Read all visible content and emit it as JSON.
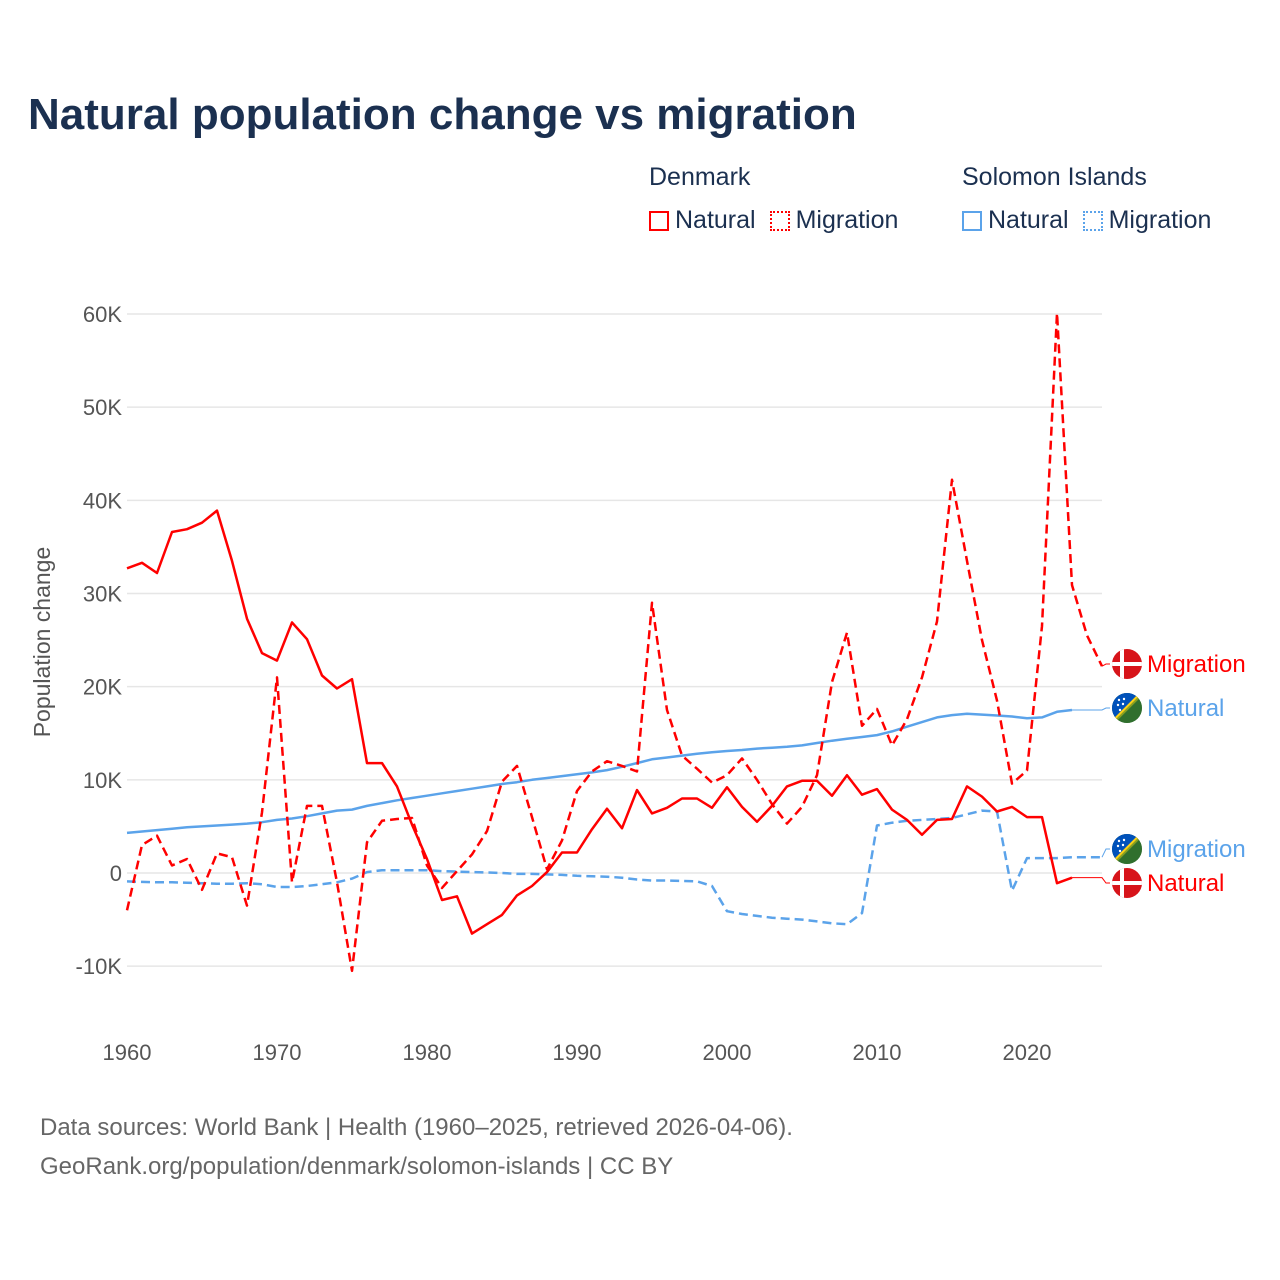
{
  "title": "Natural population change vs migration",
  "legend": {
    "groups": [
      {
        "name": "Denmark",
        "color": "#ff0000",
        "items": [
          "Natural",
          "Migration"
        ]
      },
      {
        "name": "Solomon Islands",
        "color": "#5ba3ea",
        "items": [
          "Natural",
          "Migration"
        ]
      }
    ]
  },
  "footer": {
    "line1": "Data sources: World Bank | Health (1960–2025, retrieved 2026-04-06).",
    "line2": "GeoRank.org/population/denmark/solomon-islands | CC BY"
  },
  "chart_data": {
    "type": "line",
    "title": "Natural population change vs migration",
    "xlabel": "",
    "ylabel": "Population change",
    "xlim": [
      1960,
      2025
    ],
    "ylim": [
      -10000,
      60000
    ],
    "x_ticks": [
      1960,
      1970,
      1980,
      1990,
      2000,
      2010,
      2020
    ],
    "y_ticks": [
      {
        "v": -10000,
        "l": "-10K"
      },
      {
        "v": 0,
        "l": "0"
      },
      {
        "v": 10000,
        "l": "10K"
      },
      {
        "v": 20000,
        "l": "20K"
      },
      {
        "v": 30000,
        "l": "30K"
      },
      {
        "v": 40000,
        "l": "40K"
      },
      {
        "v": 50000,
        "l": "50K"
      },
      {
        "v": 60000,
        "l": "60K"
      }
    ],
    "grid": true,
    "legend_position": "top-right",
    "series": [
      {
        "name": "Denmark Natural",
        "label": "Natural",
        "flag": "denmark",
        "color": "#ff0000",
        "dashed": false,
        "start": 1960,
        "values": [
          32700,
          33300,
          32200,
          36600,
          36900,
          37600,
          38900,
          33500,
          27300,
          23600,
          22800,
          26900,
          25100,
          21200,
          19800,
          20800,
          11800,
          11800,
          9300,
          5200,
          1500,
          -2900,
          -2500,
          -6500,
          -5500,
          -4500,
          -2400,
          -1400,
          100,
          2200,
          2200,
          4700,
          6900,
          4800,
          8900,
          6400,
          7000,
          8000,
          8000,
          7000,
          9200,
          7100,
          5500,
          7200,
          9300,
          9900,
          9900,
          8300,
          10500,
          8400,
          9000,
          6800,
          5700,
          4100,
          5700,
          5800,
          9300,
          8200,
          6600,
          7100,
          6000,
          6000,
          -1100,
          -500
        ]
      },
      {
        "name": "Denmark Migration",
        "label": "Migration",
        "flag": "denmark",
        "color": "#ff0000",
        "dashed": true,
        "start": 1960,
        "values": [
          -4000,
          3000,
          4000,
          800,
          1500,
          -1800,
          2100,
          1700,
          -3500,
          6500,
          21000,
          -1000,
          7200,
          7200,
          -1000,
          -10500,
          3300,
          5600,
          5800,
          5900,
          800,
          -1600,
          200,
          2000,
          4500,
          9800,
          11500,
          6000,
          400,
          3500,
          8800,
          10900,
          12000,
          11500,
          10900,
          29000,
          17500,
          12600,
          11200,
          9700,
          10500,
          12300,
          10000,
          7400,
          5300,
          7100,
          10500,
          20500,
          25800,
          15800,
          17600,
          13700,
          16500,
          21000,
          27000,
          42200,
          33500,
          25000,
          18500,
          9600,
          11000,
          26500,
          60100,
          30900,
          25500,
          22200
        ]
      },
      {
        "name": "Solomon Islands Natural",
        "label": "Natural",
        "flag": "solomon",
        "color": "#5ba3ea",
        "dashed": false,
        "start": 1960,
        "values": [
          4300,
          4450,
          4600,
          4750,
          4900,
          5000,
          5100,
          5200,
          5300,
          5450,
          5700,
          5850,
          6100,
          6400,
          6700,
          6800,
          7200,
          7500,
          7800,
          8050,
          8300,
          8550,
          8800,
          9050,
          9300,
          9550,
          9750,
          10000,
          10200,
          10400,
          10600,
          10800,
          11050,
          11400,
          11800,
          12200,
          12400,
          12600,
          12800,
          12950,
          13100,
          13200,
          13350,
          13450,
          13550,
          13700,
          13950,
          14200,
          14400,
          14600,
          14800,
          15200,
          15700,
          16200,
          16700,
          16950,
          17100,
          17000,
          16900,
          16800,
          16600,
          16700,
          17300,
          17500
        ]
      },
      {
        "name": "Solomon Islands Migration",
        "label": "Migration",
        "flag": "solomon",
        "color": "#5ba3ea",
        "dashed": true,
        "start": 1960,
        "values": [
          -900,
          -950,
          -1000,
          -1000,
          -1050,
          -1100,
          -1150,
          -1150,
          -1100,
          -1200,
          -1500,
          -1500,
          -1400,
          -1200,
          -1000,
          -600,
          100,
          300,
          300,
          300,
          300,
          200,
          150,
          100,
          50,
          0,
          -100,
          -100,
          -150,
          -200,
          -300,
          -350,
          -400,
          -500,
          -700,
          -800,
          -800,
          -850,
          -900,
          -1400,
          -4100,
          -4400,
          -4600,
          -4800,
          -4900,
          -5000,
          -5200,
          -5400,
          -5500,
          -4300,
          5100,
          5400,
          5600,
          5700,
          5800,
          5900,
          6300,
          6700,
          6600,
          -1900,
          1600,
          1600,
          1600,
          1700,
          1700,
          1700
        ]
      }
    ],
    "end_labels": [
      {
        "series": 1,
        "text": "Migration"
      },
      {
        "series": 2,
        "text": "Natural"
      },
      {
        "series": 3,
        "text": "Migration"
      },
      {
        "series": 0,
        "text": "Natural"
      }
    ]
  }
}
